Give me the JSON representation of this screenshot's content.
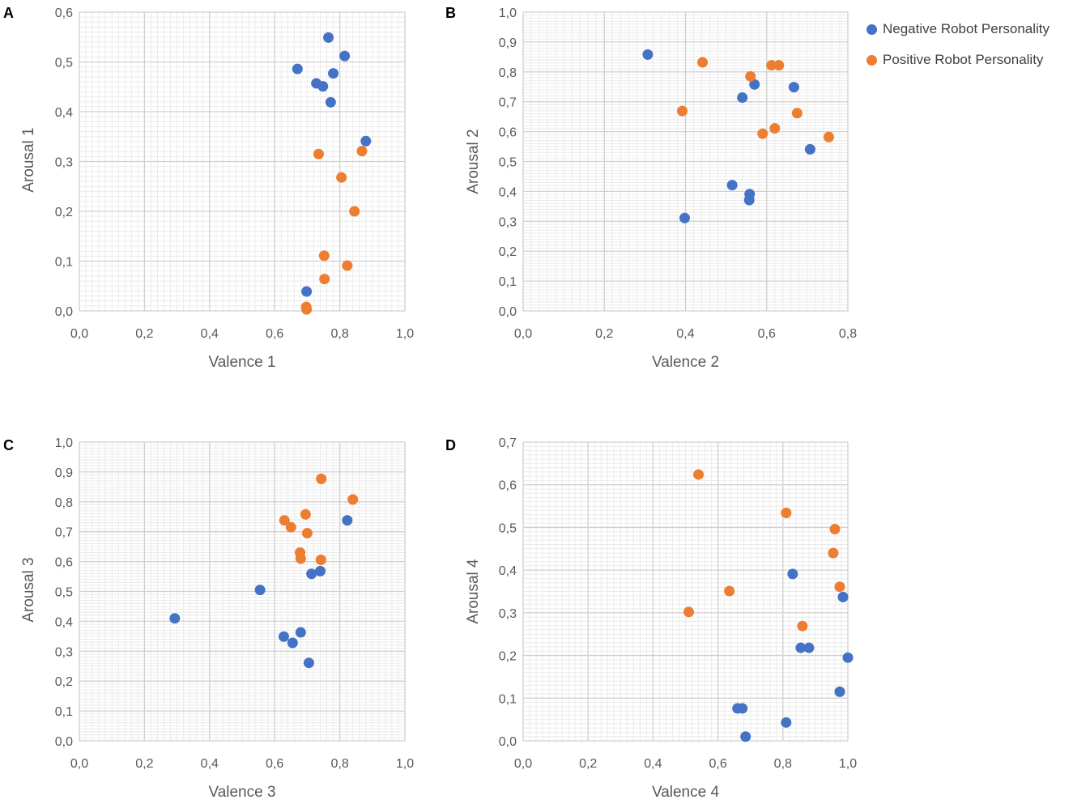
{
  "colors": {
    "negative": "#4472C4",
    "positive": "#ED7D31",
    "major_grid": "#d0d0d0",
    "minor_grid": "#ebebeb",
    "text": "#595959"
  },
  "legend": {
    "negative_label": "Negative Robot Personality",
    "positive_label": "Positive Robot Personality"
  },
  "chart_data": [
    {
      "type": "scatter",
      "panel": "A",
      "xlabel": "Valence 1",
      "ylabel": "Arousal 1",
      "xlim": [
        0,
        1.0
      ],
      "ylim": [
        0,
        0.6
      ],
      "x_ticks": [
        0,
        0.2,
        0.4,
        0.6,
        0.8,
        1.0
      ],
      "y_ticks": [
        0,
        0.1,
        0.2,
        0.3,
        0.4,
        0.5,
        0.6
      ],
      "x_tick_labels": [
        "0,0",
        "0,2",
        "0,4",
        "0,6",
        "0,8",
        "1,0"
      ],
      "y_tick_labels": [
        "0,0",
        "0,1",
        "0,2",
        "0,3",
        "0,4",
        "0,5",
        "0,6"
      ],
      "series": [
        {
          "name": "Negative Robot Personality",
          "points": [
            [
              0.765,
              0.549
            ],
            [
              0.815,
              0.512
            ],
            [
              0.67,
              0.486
            ],
            [
              0.78,
              0.477
            ],
            [
              0.728,
              0.457
            ],
            [
              0.748,
              0.451
            ],
            [
              0.772,
              0.419
            ],
            [
              0.88,
              0.341
            ],
            [
              0.698,
              0.039
            ]
          ]
        },
        {
          "name": "Positive Robot Personality",
          "points": [
            [
              0.868,
              0.321
            ],
            [
              0.735,
              0.315
            ],
            [
              0.805,
              0.268
            ],
            [
              0.845,
              0.2
            ],
            [
              0.752,
              0.111
            ],
            [
              0.823,
              0.091
            ],
            [
              0.753,
              0.064
            ],
            [
              0.697,
              0.008
            ],
            [
              0.698,
              0.003
            ]
          ]
        }
      ]
    },
    {
      "type": "scatter",
      "panel": "B",
      "xlabel": "Valence 2",
      "ylabel": "Arousal 2",
      "xlim": [
        0,
        0.8
      ],
      "ylim": [
        0,
        1.0
      ],
      "x_ticks": [
        0,
        0.2,
        0.4,
        0.6,
        0.8
      ],
      "y_ticks": [
        0,
        0.1,
        0.2,
        0.3,
        0.4,
        0.5,
        0.6,
        0.7,
        0.8,
        0.9,
        1.0
      ],
      "x_tick_labels": [
        "0,0",
        "0,2",
        "0,4",
        "0,6",
        "0,8"
      ],
      "y_tick_labels": [
        "0,0",
        "0,1",
        "0,2",
        "0,3",
        "0,4",
        "0,5",
        "0,6",
        "0,7",
        "0,8",
        "0,9",
        "1,0"
      ],
      "series": [
        {
          "name": "Negative Robot Personality",
          "points": [
            [
              0.307,
              0.858
            ],
            [
              0.57,
              0.758
            ],
            [
              0.667,
              0.749
            ],
            [
              0.54,
              0.714
            ],
            [
              0.707,
              0.541
            ],
            [
              0.515,
              0.421
            ],
            [
              0.558,
              0.391
            ],
            [
              0.557,
              0.371
            ],
            [
              0.398,
              0.311
            ]
          ]
        },
        {
          "name": "Positive Robot Personality",
          "points": [
            [
              0.442,
              0.832
            ],
            [
              0.612,
              0.822
            ],
            [
              0.63,
              0.822
            ],
            [
              0.56,
              0.785
            ],
            [
              0.392,
              0.669
            ],
            [
              0.675,
              0.662
            ],
            [
              0.62,
              0.611
            ],
            [
              0.59,
              0.593
            ],
            [
              0.753,
              0.582
            ]
          ]
        }
      ]
    },
    {
      "type": "scatter",
      "panel": "C",
      "xlabel": "Valence 3",
      "ylabel": "Arousal 3",
      "xlim": [
        0,
        1.0
      ],
      "ylim": [
        0,
        1.0
      ],
      "x_ticks": [
        0,
        0.2,
        0.4,
        0.6,
        0.8,
        1.0
      ],
      "y_ticks": [
        0,
        0.1,
        0.2,
        0.3,
        0.4,
        0.5,
        0.6,
        0.7,
        0.8,
        0.9,
        1.0
      ],
      "x_tick_labels": [
        "0,0",
        "0,2",
        "0,4",
        "0,6",
        "0,8",
        "1,0"
      ],
      "y_tick_labels": [
        "0,0",
        "0,1",
        "0,2",
        "0,3",
        "0,4",
        "0,5",
        "0,6",
        "0,7",
        "0,8",
        "0,9",
        "1,0"
      ],
      "series": [
        {
          "name": "Negative Robot Personality",
          "points": [
            [
              0.823,
              0.738
            ],
            [
              0.74,
              0.568
            ],
            [
              0.713,
              0.559
            ],
            [
              0.555,
              0.505
            ],
            [
              0.293,
              0.41
            ],
            [
              0.68,
              0.363
            ],
            [
              0.628,
              0.349
            ],
            [
              0.655,
              0.328
            ],
            [
              0.705,
              0.261
            ]
          ]
        },
        {
          "name": "Positive Robot Personality",
          "points": [
            [
              0.743,
              0.877
            ],
            [
              0.84,
              0.808
            ],
            [
              0.695,
              0.758
            ],
            [
              0.63,
              0.738
            ],
            [
              0.65,
              0.715
            ],
            [
              0.7,
              0.695
            ],
            [
              0.678,
              0.63
            ],
            [
              0.68,
              0.61
            ],
            [
              0.742,
              0.606
            ]
          ]
        }
      ]
    },
    {
      "type": "scatter",
      "panel": "D",
      "xlabel": "Valence 4",
      "ylabel": "Arousal 4",
      "xlim": [
        0,
        1.0
      ],
      "ylim": [
        0,
        0.7
      ],
      "x_ticks": [
        0,
        0.2,
        0.4,
        0.6,
        0.8,
        1.0
      ],
      "y_ticks": [
        0,
        0.1,
        0.2,
        0.3,
        0.4,
        0.5,
        0.6,
        0.7
      ],
      "x_tick_labels": [
        "0,0",
        "0,2",
        "0,4",
        "0,6",
        "0,8",
        "1,0"
      ],
      "y_tick_labels": [
        "0,0",
        "0,1",
        "0,2",
        "0,3",
        "0,4",
        "0,5",
        "0,6",
        "0,7"
      ],
      "series": [
        {
          "name": "Negative Robot Personality",
          "points": [
            [
              0.83,
              0.391
            ],
            [
              0.985,
              0.337
            ],
            [
              1.0,
              0.195
            ],
            [
              0.855,
              0.218
            ],
            [
              0.88,
              0.218
            ],
            [
              0.975,
              0.115
            ],
            [
              0.66,
              0.076
            ],
            [
              0.675,
              0.076
            ],
            [
              0.81,
              0.043
            ],
            [
              0.685,
              0.01
            ]
          ]
        },
        {
          "name": "Positive Robot Personality",
          "points": [
            [
              0.54,
              0.624
            ],
            [
              0.81,
              0.534
            ],
            [
              0.96,
              0.496
            ],
            [
              0.955,
              0.44
            ],
            [
              0.975,
              0.361
            ],
            [
              0.635,
              0.351
            ],
            [
              0.51,
              0.302
            ],
            [
              0.86,
              0.269
            ]
          ]
        }
      ]
    }
  ]
}
